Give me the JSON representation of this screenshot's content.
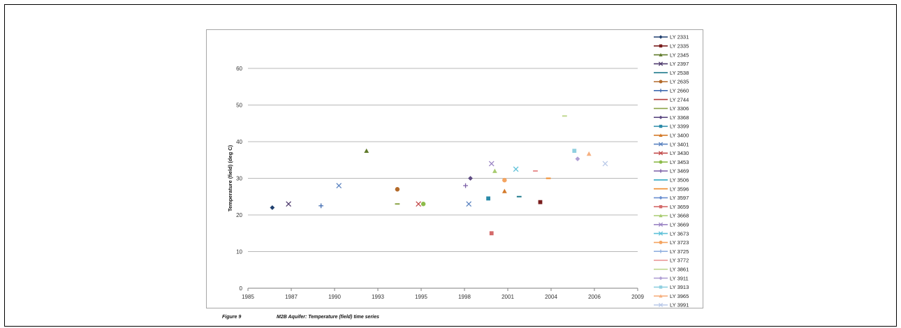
{
  "caption": {
    "figure": "Figure 9",
    "text": "M2B Aquifer: Temperature (field) time series"
  },
  "chart_data": {
    "type": "scatter",
    "ylabel": "Temperature (field) (deg C)",
    "xlim": [
      1985,
      2009
    ],
    "ylim": [
      0,
      60
    ],
    "xticks": [
      "1985",
      "1987",
      "1990",
      "1993",
      "1995",
      "1998",
      "2001",
      "2004",
      "2006",
      "2009"
    ],
    "yticks": [
      "0",
      "10",
      "20",
      "30",
      "40",
      "50",
      "60"
    ],
    "grid": "horizontal",
    "legend": "right",
    "series": [
      {
        "name": "LY 2331",
        "color": "#1f3f6e",
        "marker": "diamond",
        "points": [
          [
            1986.5,
            22
          ]
        ]
      },
      {
        "name": "LY 2335",
        "color": "#7a1e1e",
        "marker": "square",
        "points": [
          [
            2003.0,
            23.5
          ]
        ]
      },
      {
        "name": "LY 2345",
        "color": "#5f7a2a",
        "marker": "triangle",
        "points": [
          [
            1992.3,
            37.5
          ]
        ]
      },
      {
        "name": "LY 2397",
        "color": "#4f3b6e",
        "marker": "x",
        "points": [
          [
            1987.5,
            23
          ]
        ]
      },
      {
        "name": "LY 2538",
        "color": "#1f7a8c",
        "marker": "dash",
        "points": [
          [
            2001.7,
            25
          ]
        ]
      },
      {
        "name": "LY 2635",
        "color": "#b36a2a",
        "marker": "circle",
        "points": [
          [
            1994.2,
            27
          ]
        ]
      },
      {
        "name": "LY 2660",
        "color": "#3e6ab0",
        "marker": "plus",
        "points": [
          [
            1989.5,
            22.5
          ]
        ]
      },
      {
        "name": "LY 2744",
        "color": "#b23a3a",
        "marker": "dash",
        "points": []
      },
      {
        "name": "LY 3306",
        "color": "#8aa346",
        "marker": "dash",
        "points": [
          [
            1994.2,
            23
          ]
        ]
      },
      {
        "name": "LY 3368",
        "color": "#5d4a82",
        "marker": "diamond",
        "points": [
          [
            1998.7,
            30
          ]
        ]
      },
      {
        "name": "LY 3399",
        "color": "#2a8aa8",
        "marker": "square",
        "points": [
          [
            1999.8,
            24.5
          ]
        ]
      },
      {
        "name": "LY 3400",
        "color": "#d47a2a",
        "marker": "triangle",
        "points": [
          [
            2000.8,
            26.5
          ]
        ]
      },
      {
        "name": "LY 3401",
        "color": "#5a82c0",
        "marker": "x",
        "points": [
          [
            1990.6,
            28
          ],
          [
            1998.6,
            23
          ]
        ]
      },
      {
        "name": "LY 3430",
        "color": "#c24a4a",
        "marker": "x",
        "points": [
          [
            1995.5,
            23
          ]
        ]
      },
      {
        "name": "LY 3453",
        "color": "#8dbb4a",
        "marker": "circle",
        "points": [
          [
            1995.8,
            23
          ]
        ]
      },
      {
        "name": "LY 3469",
        "color": "#7b5ea6",
        "marker": "plus",
        "points": [
          [
            1998.4,
            28
          ]
        ]
      },
      {
        "name": "LY 3506",
        "color": "#33a8c2",
        "marker": "dash",
        "points": []
      },
      {
        "name": "LY 3596",
        "color": "#f08a2a",
        "marker": "dash",
        "points": [
          [
            2003.5,
            30
          ]
        ]
      },
      {
        "name": "LY 3597",
        "color": "#6a8fd0",
        "marker": "diamond",
        "points": []
      },
      {
        "name": "LY 3659",
        "color": "#d46a6a",
        "marker": "square",
        "points": [
          [
            2000.0,
            15
          ]
        ]
      },
      {
        "name": "LY 3668",
        "color": "#a8cc70",
        "marker": "triangle",
        "points": [
          [
            2000.2,
            32
          ]
        ]
      },
      {
        "name": "LY 3669",
        "color": "#9a84c4",
        "marker": "x",
        "points": [
          [
            2000.0,
            34
          ]
        ]
      },
      {
        "name": "LY 3673",
        "color": "#5cc0d8",
        "marker": "x",
        "points": [
          [
            2001.5,
            32.5
          ]
        ]
      },
      {
        "name": "LY 3723",
        "color": "#f4a460",
        "marker": "circle",
        "points": [
          [
            2000.8,
            29.5
          ]
        ]
      },
      {
        "name": "LY 3725",
        "color": "#90b0e0",
        "marker": "plus",
        "points": []
      },
      {
        "name": "LY 3772",
        "color": "#e89090",
        "marker": "dash",
        "points": [
          [
            2002.7,
            32
          ]
        ]
      },
      {
        "name": "LY 3861",
        "color": "#c0d890",
        "marker": "dash",
        "points": [
          [
            2004.5,
            47
          ]
        ]
      },
      {
        "name": "LY 3911",
        "color": "#b0a0d4",
        "marker": "diamond",
        "points": [
          [
            2005.3,
            35.3
          ]
        ]
      },
      {
        "name": "LY 3913",
        "color": "#90d0e0",
        "marker": "square",
        "points": [
          [
            2005.1,
            37.5
          ]
        ]
      },
      {
        "name": "LY 3965",
        "color": "#f6b080",
        "marker": "triangle",
        "points": [
          [
            2006.0,
            36.7
          ]
        ]
      },
      {
        "name": "LY 3991",
        "color": "#b8c8e8",
        "marker": "x",
        "points": [
          [
            2007.0,
            34
          ]
        ]
      }
    ]
  }
}
